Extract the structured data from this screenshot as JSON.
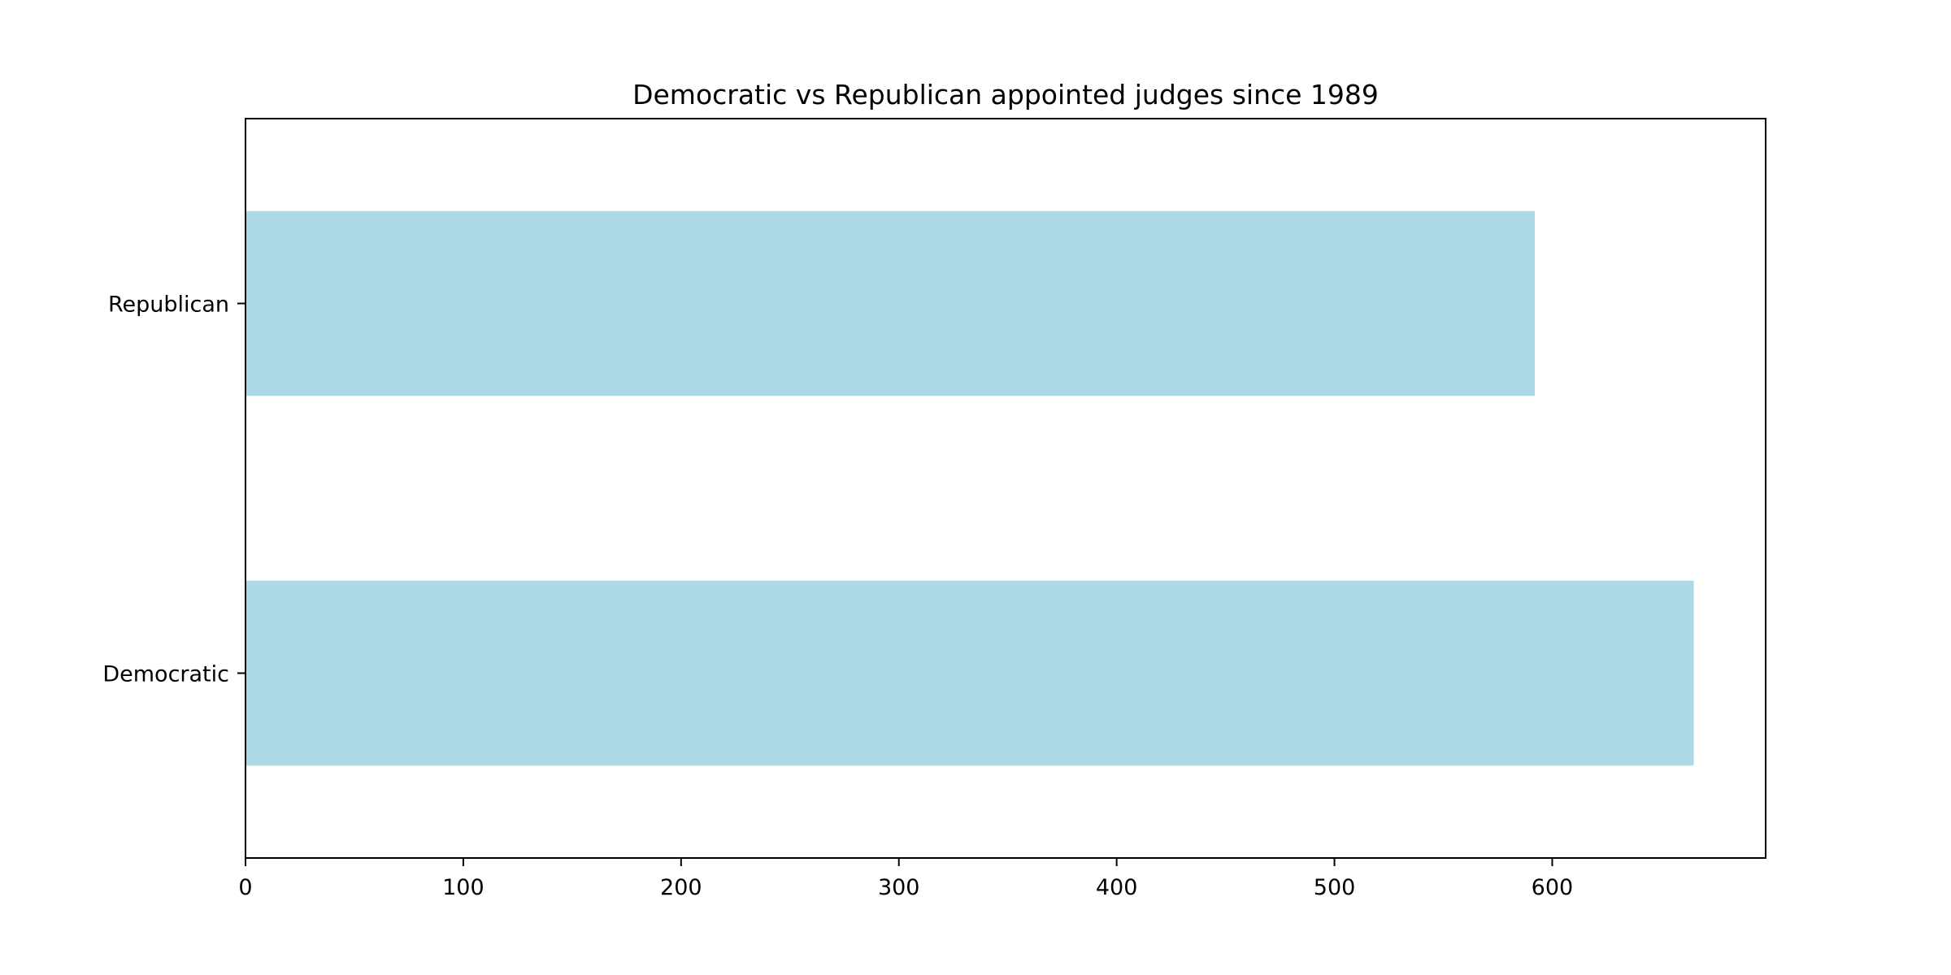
{
  "chart_data": {
    "type": "bar",
    "orientation": "horizontal",
    "title": "Democratic vs Republican appointed judges since 1989",
    "xlabel": "",
    "ylabel": "",
    "categories": [
      "Democratic",
      "Republican"
    ],
    "values": [
      665,
      592
    ],
    "xlim": [
      0,
      698
    ],
    "xticks": [
      0,
      100,
      200,
      300,
      400,
      500,
      600
    ],
    "bar_color": "#add8e6",
    "grid": false,
    "legend": "none"
  }
}
